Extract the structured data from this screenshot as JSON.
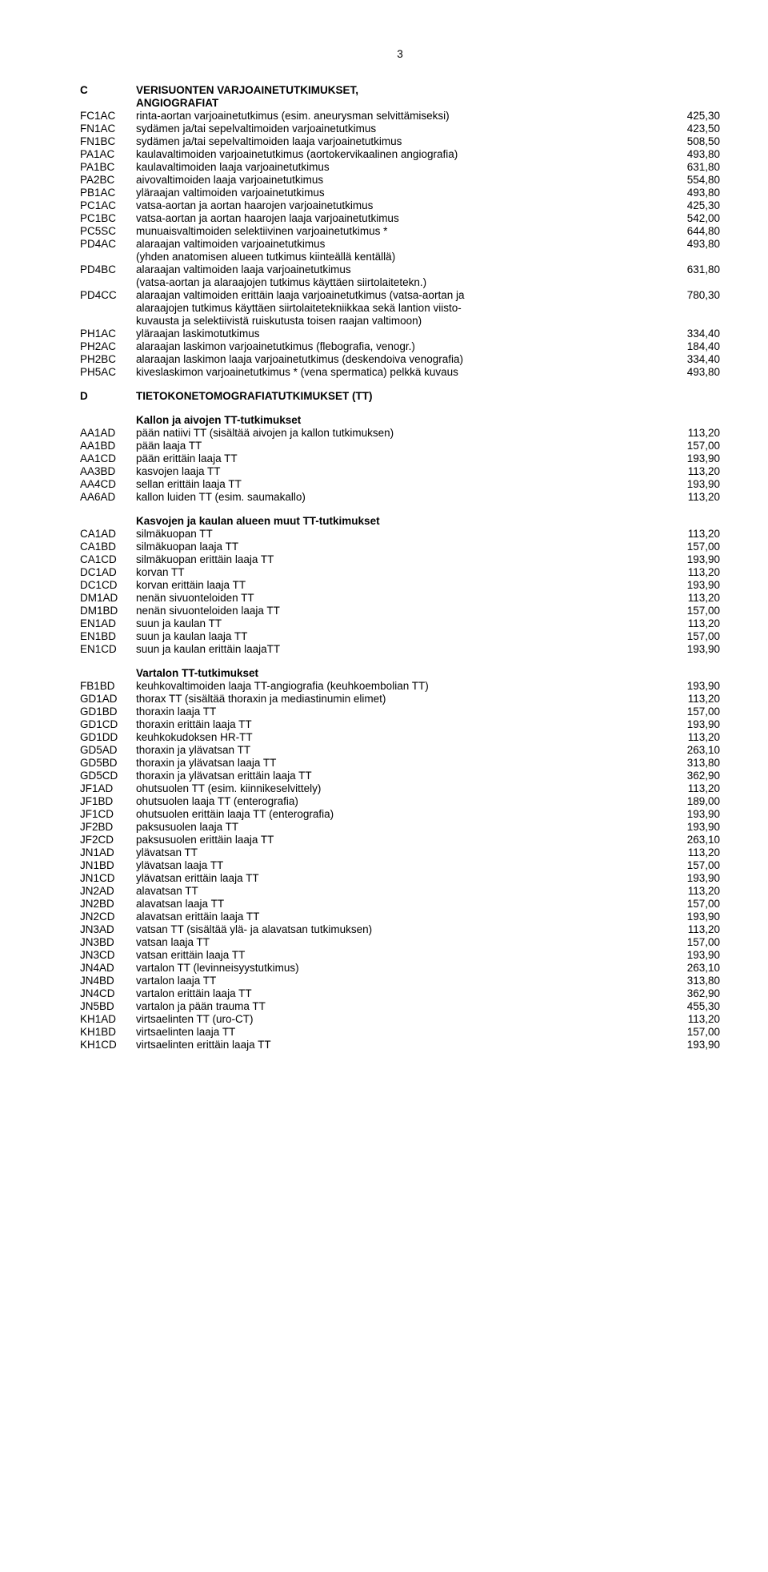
{
  "page_number": "3",
  "sections": [
    {
      "code": "C",
      "title_lines": [
        "VERISUONTEN  VARJOAINETUTKIMUKSET,",
        "ANGIOGRAFIAT"
      ],
      "rows": [
        {
          "code": "FC1AC",
          "desc": "rinta-aortan varjoainetutkimus (esim. aneurysman selvittämiseksi)",
          "val": "425,30"
        },
        {
          "code": "FN1AC",
          "desc": "sydämen ja/tai sepelvaltimoiden varjoainetutkimus",
          "val": "423,50"
        },
        {
          "code": "FN1BC",
          "desc": "sydämen ja/tai sepelvaltimoiden laaja varjoainetutkimus",
          "val": "508,50"
        },
        {
          "code": "PA1AC",
          "desc": "kaulavaltimoiden varjoainetutkimus (aortokervikaalinen angiografia)",
          "val": "493,80"
        },
        {
          "code": "PA1BC",
          "desc": "kaulavaltimoiden laaja varjoainetutkimus",
          "val": "631,80"
        },
        {
          "code": "PA2BC",
          "desc": "aivovaltimoiden laaja varjoainetutkimus",
          "val": "554,80"
        },
        {
          "code": "PB1AC",
          "desc": "yläraajan valtimoiden varjoainetutkimus",
          "val": "493,80"
        },
        {
          "code": "PC1AC",
          "desc": "vatsa-aortan ja aortan haarojen varjoainetutkimus",
          "val": "425,30"
        },
        {
          "code": "PC1BC",
          "desc": "vatsa-aortan ja aortan haarojen laaja varjoainetutkimus",
          "val": "542,00"
        },
        {
          "code": "PC5SC",
          "desc": "munuaisvaltimoiden selektiivinen varjoainetutkimus *",
          "val": "644,80"
        },
        {
          "code": "PD4AC",
          "desc": "alaraajan valtimoiden varjoainetutkimus",
          "val": "493,80"
        },
        {
          "code": "",
          "desc": "(yhden anatomisen alueen tutkimus kiinteällä kentällä)",
          "val": ""
        },
        {
          "code": "PD4BC",
          "desc": "alaraajan valtimoiden laaja varjoainetutkimus",
          "val": "631,80"
        },
        {
          "code": "",
          "desc": "(vatsa-aortan ja alaraajojen tutkimus käyttäen siirtolaitetekn.)",
          "val": ""
        },
        {
          "code": "PD4CC",
          "desc": "alaraajan valtimoiden erittäin laaja varjoainetutkimus (vatsa-aortan ja",
          "val": "780,30"
        },
        {
          "code": "",
          "desc": "alaraajojen tutkimus käyttäen siirtolaitetekniikkaa sekä lantion viisto-",
          "val": ""
        },
        {
          "code": "",
          "desc": "kuvausta ja selektiivistä ruiskutusta toisen raajan valtimoon)",
          "val": ""
        },
        {
          "code": "PH1AC",
          "desc": "yläraajan laskimotutkimus",
          "val": "334,40"
        },
        {
          "code": "PH2AC",
          "desc": "alaraajan laskimon varjoainetutkimus (flebografia, venogr.)",
          "val": "184,40"
        },
        {
          "code": "PH2BC",
          "desc": "alaraajan laskimon laaja varjoainetutkimus (deskendoiva venografia)",
          "val": "334,40"
        },
        {
          "code": "PH5AC",
          "desc": "kiveslaskimon varjoainetutkimus * (vena spermatica) pelkkä kuvaus",
          "val": "493,80"
        }
      ]
    },
    {
      "code": "D",
      "title_lines": [
        "TIETOKONETOMOGRAFIATUTKIMUKSET (TT)"
      ],
      "subgroups": [
        {
          "heading": "Kallon ja aivojen TT-tutkimukset",
          "rows": [
            {
              "code": "AA1AD",
              "desc": "pään natiivi TT (sisältää aivojen ja kallon tutkimuksen)",
              "val": "113,20"
            },
            {
              "code": "AA1BD",
              "desc": "pään laaja TT",
              "val": "157,00"
            },
            {
              "code": "AA1CD",
              "desc": "pään erittäin laaja TT",
              "val": "193,90"
            },
            {
              "code": "AA3BD",
              "desc": "kasvojen laaja TT",
              "val": "113,20"
            },
            {
              "code": "AA4CD",
              "desc": "sellan erittäin laaja TT",
              "val": "193,90"
            },
            {
              "code": "AA6AD",
              "desc": "kallon luiden TT (esim. saumakallo)",
              "val": "113,20"
            }
          ]
        },
        {
          "heading": "Kasvojen ja kaulan alueen muut TT-tutkimukset",
          "rows": [
            {
              "code": "CA1AD",
              "desc": "silmäkuopan TT",
              "val": "113,20"
            },
            {
              "code": "CA1BD",
              "desc": "silmäkuopan laaja TT",
              "val": "157,00"
            },
            {
              "code": "CA1CD",
              "desc": "silmäkuopan erittäin laaja TT",
              "val": "193,90"
            },
            {
              "code": "DC1AD",
              "desc": "korvan TT",
              "val": "113,20"
            },
            {
              "code": "DC1CD",
              "desc": "korvan erittäin laaja TT",
              "val": "193,90"
            },
            {
              "code": "DM1AD",
              "desc": "nenän sivuonteloiden TT",
              "val": "113,20"
            },
            {
              "code": "DM1BD",
              "desc": "nenän sivuonteloiden laaja TT",
              "val": "157,00"
            },
            {
              "code": "EN1AD",
              "desc": "suun ja kaulan TT",
              "val": "113,20"
            },
            {
              "code": "EN1BD",
              "desc": "suun ja kaulan laaja TT",
              "val": "157,00"
            },
            {
              "code": "EN1CD",
              "desc": "suun ja kaulan erittäin laajaTT",
              "val": "193,90"
            }
          ]
        },
        {
          "heading": "Vartalon TT-tutkimukset",
          "rows": [
            {
              "code": "FB1BD",
              "desc": "keuhkovaltimoiden laaja TT-angiografia (keuhkoembolian TT)",
              "val": "193,90"
            },
            {
              "code": "GD1AD",
              "desc": "thorax TT (sisältää thoraxin ja mediastinumin elimet)",
              "val": "113,20"
            },
            {
              "code": "GD1BD",
              "desc": "thoraxin laaja TT",
              "val": "157,00"
            },
            {
              "code": "GD1CD",
              "desc": "thoraxin erittäin laaja TT",
              "val": "193,90"
            },
            {
              "code": "GD1DD",
              "desc": "keuhkokudoksen HR-TT",
              "val": "113,20"
            },
            {
              "code": "GD5AD",
              "desc": "thoraxin ja ylävatsan TT",
              "val": "263,10"
            },
            {
              "code": "GD5BD",
              "desc": "thoraxin ja ylävatsan laaja TT",
              "val": "313,80"
            },
            {
              "code": "GD5CD",
              "desc": "thoraxin ja ylävatsan erittäin laaja TT",
              "val": "362,90"
            },
            {
              "code": "JF1AD",
              "desc": "ohutsuolen TT (esim. kiinnikeselvittely)",
              "val": "113,20"
            },
            {
              "code": "JF1BD",
              "desc": "ohutsuolen laaja TT (enterografia)",
              "val": "189,00"
            },
            {
              "code": "JF1CD",
              "desc": "ohutsuolen erittäin laaja TT (enterografia)",
              "val": "193,90"
            },
            {
              "code": "JF2BD",
              "desc": "paksusuolen laaja TT",
              "val": "193,90"
            },
            {
              "code": "JF2CD",
              "desc": "paksusuolen erittäin laaja TT",
              "val": "263,10"
            },
            {
              "code": "JN1AD",
              "desc": "ylävatsan TT",
              "val": "113,20"
            },
            {
              "code": "JN1BD",
              "desc": "ylävatsan laaja TT",
              "val": "157,00"
            },
            {
              "code": "JN1CD",
              "desc": "ylävatsan erittäin laaja TT",
              "val": "193,90"
            },
            {
              "code": "JN2AD",
              "desc": "alavatsan TT",
              "val": "113,20"
            },
            {
              "code": "JN2BD",
              "desc": "alavatsan laaja TT",
              "val": "157,00"
            },
            {
              "code": "JN2CD",
              "desc": "alavatsan erittäin laaja TT",
              "val": "193,90"
            },
            {
              "code": "JN3AD",
              "desc": "vatsan TT  (sisältää ylä- ja alavatsan tutkimuksen)",
              "val": "113,20"
            },
            {
              "code": "JN3BD",
              "desc": "vatsan laaja TT",
              "val": "157,00"
            },
            {
              "code": "JN3CD",
              "desc": "vatsan erittäin laaja TT",
              "val": "193,90"
            },
            {
              "code": "JN4AD",
              "desc": "vartalon TT (levinneisyystutkimus)",
              "val": "263,10"
            },
            {
              "code": "JN4BD",
              "desc": "vartalon laaja TT",
              "val": "313,80"
            },
            {
              "code": "JN4CD",
              "desc": "vartalon erittäin laaja TT",
              "val": "362,90"
            },
            {
              "code": "JN5BD",
              "desc": "vartalon ja pään trauma TT",
              "val": "455,30"
            },
            {
              "code": "KH1AD",
              "desc": "virtsaelinten TT (uro-CT)",
              "val": "113,20"
            },
            {
              "code": "KH1BD",
              "desc": "virtsaelinten laaja TT",
              "val": "157,00"
            },
            {
              "code": "KH1CD",
              "desc": "virtsaelinten erittäin laaja TT",
              "val": "193,90"
            }
          ]
        }
      ]
    }
  ]
}
